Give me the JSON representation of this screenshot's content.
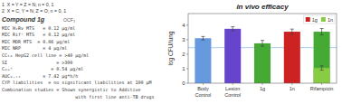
{
  "chart_data": {
    "type": "bar",
    "title": "in vivo efficacy",
    "ylabel": "log CFU/lung",
    "categories": [
      "Body\nControl",
      "Lesion\nControl",
      "1g",
      "1n",
      "Rifampicin"
    ],
    "values": [
      3.1,
      3.75,
      2.75,
      3.55,
      3.55
    ],
    "colors": [
      "#6699dd",
      "#6644cc",
      "#44aa33",
      "#cc2222",
      "#44aa33"
    ],
    "errors": [
      0.12,
      0.14,
      0.2,
      0.18,
      0.22
    ],
    "overlay_values": [
      null,
      null,
      null,
      null,
      1.05
    ],
    "overlay_errors": [
      null,
      null,
      null,
      null,
      0.15
    ],
    "overlay_color": "#88cc44",
    "reference_line": {
      "value": 2.45,
      "color": "#aaccee"
    },
    "ylim": [
      0,
      4.8
    ],
    "yticks": [
      0,
      1,
      2,
      3,
      4
    ],
    "grid": false,
    "legend": "upper right",
    "legend_entries": [
      {
        "label": "1g",
        "color": "#cc2222"
      },
      {
        "label": "1n",
        "color": "#88cc44"
      }
    ],
    "structure_labels": [
      "1  X = Y = Z = N; n = 0, 1",
      "2  X = C; Y = N; Z = O; n = 0, 1"
    ],
    "compound_label": "Compound 1g",
    "substituent_label": "OCF₃",
    "data_lines": [
      "MIC H₂Rv MTS   = 0.12 μg/ml",
      "MIC Rifʳ MTS   = 0.12 μg/ml",
      "MIC MDR MTS  = 0.06 μg/ml",
      "MIC NRP        = 4 μg/ml",
      "CC₅₀ HepG2 cell line = >40 μg/ml",
      "SI                  = >300",
      "Cₘₐˣ              = 0.54 μg/ml",
      "AUC₀.₌ₜ        = 7.42 μg*h/h",
      "CYP liabilities  = no significant liabilities at 100 μM",
      "Combination studies = Shown synergistic to Additive",
      "                           with first line anti-TB drugs"
    ]
  }
}
